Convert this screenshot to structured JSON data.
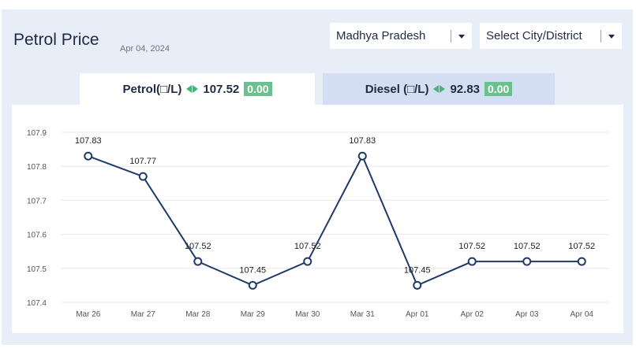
{
  "header": {
    "title": "Petrol Price",
    "date": "Apr 04, 2024"
  },
  "filters": {
    "state": "Madhya Pradesh",
    "city": "Select City/District"
  },
  "tabs": [
    {
      "label": "Petrol(□/L)",
      "price": "107.52",
      "change": "0.00",
      "active": true
    },
    {
      "label": "Diesel (□/L)",
      "price": "92.83",
      "change": "0.00",
      "active": false
    }
  ],
  "colors": {
    "line": "#1f3a68",
    "change_badge": "#6cc08f",
    "change_arrow": "#48b27a",
    "grid": "#e6e8ec"
  },
  "chart_data": {
    "type": "line",
    "categories": [
      "Mar 26",
      "Mar 27",
      "Mar 28",
      "Mar 29",
      "Mar 30",
      "Mar 31",
      "Apr 01",
      "Apr 02",
      "Apr 03",
      "Apr 04"
    ],
    "series": [
      {
        "values": [
          107.83,
          107.77,
          107.52,
          107.45,
          107.52,
          107.83,
          107.45,
          107.52,
          107.52,
          107.52
        ]
      }
    ],
    "data_labels": [
      "107.83",
      "107.77",
      "107.52",
      "107.45",
      "107.52",
      "107.83",
      "107.45",
      "107.52",
      "107.52",
      "107.52"
    ],
    "yticks": [
      "107.4",
      "107.5",
      "107.6",
      "107.7",
      "107.8",
      "107.9"
    ],
    "ylim": [
      107.4,
      107.9
    ],
    "grid": true
  }
}
